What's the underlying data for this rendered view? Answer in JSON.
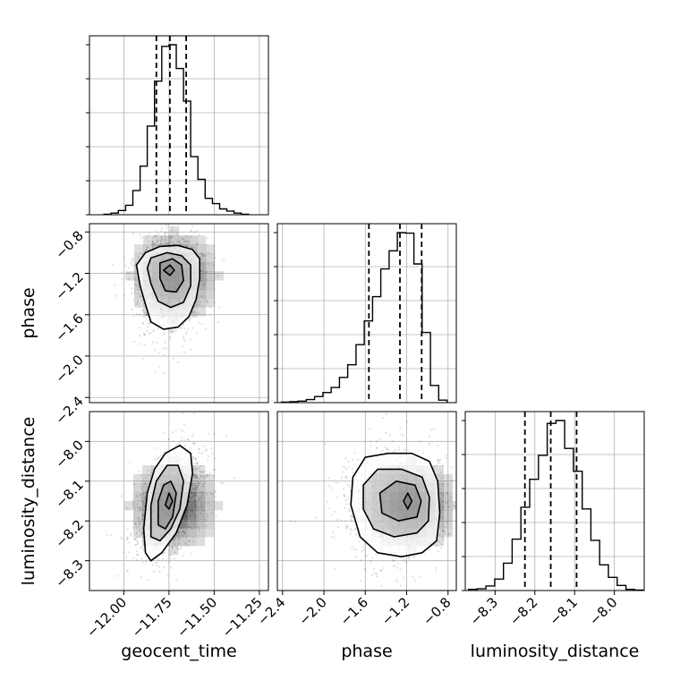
{
  "chart_data": {
    "type": "corner",
    "parameters": [
      "geocent_time",
      "phase",
      "luminosity_distance"
    ],
    "ranges": {
      "geocent_time": [
        -12.19,
        -11.2
      ],
      "phase": [
        -2.45,
        -0.72
      ],
      "luminosity_distance": [
        -8.375,
        -7.925
      ]
    },
    "grid": true,
    "histograms": [
      {
        "parameter": "geocent_time",
        "quantiles": [
          -11.82,
          -11.745,
          -11.655
        ],
        "bins": [
          {
            "x": -12.09,
            "count": 1
          },
          {
            "x": -12.05,
            "count": 3
          },
          {
            "x": -12.01,
            "count": 8
          },
          {
            "x": -11.97,
            "count": 18
          },
          {
            "x": -11.93,
            "count": 46
          },
          {
            "x": -11.89,
            "count": 92
          },
          {
            "x": -11.85,
            "count": 168
          },
          {
            "x": -11.81,
            "count": 253
          },
          {
            "x": -11.77,
            "count": 319
          },
          {
            "x": -11.73,
            "count": 322
          },
          {
            "x": -11.69,
            "count": 277
          },
          {
            "x": -11.65,
            "count": 215
          },
          {
            "x": -11.61,
            "count": 110
          },
          {
            "x": -11.57,
            "count": 67
          },
          {
            "x": -11.53,
            "count": 31
          },
          {
            "x": -11.49,
            "count": 21
          },
          {
            "x": -11.45,
            "count": 11
          },
          {
            "x": -11.41,
            "count": 7
          },
          {
            "x": -11.37,
            "count": 3
          },
          {
            "x": -11.33,
            "count": 1
          }
        ]
      },
      {
        "parameter": "phase",
        "quantiles": [
          -1.565,
          -1.265,
          -1.055
        ],
        "bins": [
          {
            "x": -2.37,
            "count": 1
          },
          {
            "x": -2.29,
            "count": 2
          },
          {
            "x": -2.21,
            "count": 3
          },
          {
            "x": -2.13,
            "count": 6
          },
          {
            "x": -2.05,
            "count": 12
          },
          {
            "x": -1.97,
            "count": 20
          },
          {
            "x": -1.89,
            "count": 30
          },
          {
            "x": -1.81,
            "count": 50
          },
          {
            "x": -1.73,
            "count": 75
          },
          {
            "x": -1.65,
            "count": 115
          },
          {
            "x": -1.57,
            "count": 162
          },
          {
            "x": -1.49,
            "count": 210
          },
          {
            "x": -1.41,
            "count": 265
          },
          {
            "x": -1.33,
            "count": 301
          },
          {
            "x": -1.25,
            "count": 337
          },
          {
            "x": -1.17,
            "count": 336
          },
          {
            "x": -1.09,
            "count": 275
          },
          {
            "x": -1.01,
            "count": 139
          },
          {
            "x": -0.93,
            "count": 34
          },
          {
            "x": -0.85,
            "count": 5
          }
        ]
      },
      {
        "parameter": "luminosity_distance",
        "quantiles": [
          -8.225,
          -8.16,
          -8.095
        ],
        "bins": [
          {
            "x": -8.356,
            "count": 2
          },
          {
            "x": -8.334,
            "count": 3
          },
          {
            "x": -8.312,
            "count": 8
          },
          {
            "x": -8.29,
            "count": 20
          },
          {
            "x": -8.268,
            "count": 48
          },
          {
            "x": -8.246,
            "count": 90
          },
          {
            "x": -8.224,
            "count": 146
          },
          {
            "x": -8.202,
            "count": 195
          },
          {
            "x": -8.18,
            "count": 237
          },
          {
            "x": -8.158,
            "count": 293
          },
          {
            "x": -8.136,
            "count": 298
          },
          {
            "x": -8.114,
            "count": 249
          },
          {
            "x": -8.092,
            "count": 209
          },
          {
            "x": -8.07,
            "count": 143
          },
          {
            "x": -8.048,
            "count": 88
          },
          {
            "x": -8.026,
            "count": 45
          },
          {
            "x": -8.004,
            "count": 23
          },
          {
            "x": -7.982,
            "count": 9
          },
          {
            "x": -7.96,
            "count": 2
          },
          {
            "x": -7.938,
            "count": 1
          }
        ]
      }
    ],
    "panels2d": [
      {
        "x": "geocent_time",
        "y": "phase",
        "mean": [
          -11.745,
          -1.3
        ],
        "sd": [
          0.085,
          0.22
        ],
        "rho": 0.05,
        "peak": [
          -11.745,
          -1.18
        ],
        "contours": [
          [
            [
              -11.88,
              -1.0
            ],
            [
              -11.8,
              -0.94
            ],
            [
              -11.7,
              -0.93
            ],
            [
              -11.62,
              -0.97
            ],
            [
              -11.58,
              -1.06
            ],
            [
              -11.58,
              -1.25
            ],
            [
              -11.6,
              -1.45
            ],
            [
              -11.64,
              -1.62
            ],
            [
              -11.7,
              -1.72
            ],
            [
              -11.78,
              -1.74
            ],
            [
              -11.85,
              -1.67
            ],
            [
              -11.88,
              -1.5
            ],
            [
              -11.91,
              -1.32
            ],
            [
              -11.93,
              -1.12
            ]
          ],
          [
            [
              -11.85,
              -1.05
            ],
            [
              -11.76,
              -1.0
            ],
            [
              -11.68,
              -1.03
            ],
            [
              -11.63,
              -1.12
            ],
            [
              -11.63,
              -1.32
            ],
            [
              -11.67,
              -1.48
            ],
            [
              -11.74,
              -1.53
            ],
            [
              -11.81,
              -1.47
            ],
            [
              -11.85,
              -1.3
            ],
            [
              -11.87,
              -1.15
            ]
          ],
          [
            [
              -11.8,
              -1.1
            ],
            [
              -11.73,
              -1.06
            ],
            [
              -11.68,
              -1.12
            ],
            [
              -11.67,
              -1.27
            ],
            [
              -11.71,
              -1.38
            ],
            [
              -11.77,
              -1.37
            ],
            [
              -11.8,
              -1.25
            ]
          ],
          [
            [
              -11.78,
              -1.17
            ],
            [
              -11.745,
              -1.12
            ],
            [
              -11.72,
              -1.17
            ],
            [
              -11.745,
              -1.22
            ]
          ]
        ]
      },
      {
        "x": "geocent_time",
        "y": "luminosity_distance",
        "mean": [
          -11.745,
          -8.16
        ],
        "sd": [
          0.085,
          0.06
        ],
        "rho": 0.45,
        "peak": [
          -11.75,
          -8.15
        ],
        "contours": [
          [
            [
              -11.88,
              -8.28
            ],
            [
              -11.89,
              -8.22
            ],
            [
              -11.87,
              -8.13
            ],
            [
              -11.83,
              -8.07
            ],
            [
              -11.77,
              -8.03
            ],
            [
              -11.69,
              -8.01
            ],
            [
              -11.63,
              -8.03
            ],
            [
              -11.62,
              -8.08
            ],
            [
              -11.65,
              -8.16
            ],
            [
              -11.71,
              -8.23
            ],
            [
              -11.79,
              -8.28
            ],
            [
              -11.85,
              -8.3
            ]
          ],
          [
            [
              -11.85,
              -8.24
            ],
            [
              -11.85,
              -8.16
            ],
            [
              -11.82,
              -8.1
            ],
            [
              -11.76,
              -8.06
            ],
            [
              -11.7,
              -8.06
            ],
            [
              -11.67,
              -8.1
            ],
            [
              -11.69,
              -8.17
            ],
            [
              -11.74,
              -8.22
            ],
            [
              -11.8,
              -8.25
            ]
          ],
          [
            [
              -11.81,
              -8.21
            ],
            [
              -11.81,
              -8.15
            ],
            [
              -11.78,
              -8.11
            ],
            [
              -11.74,
              -8.1
            ],
            [
              -11.71,
              -8.13
            ],
            [
              -11.73,
              -8.19
            ],
            [
              -11.77,
              -8.22
            ]
          ],
          [
            [
              -11.77,
              -8.16
            ],
            [
              -11.75,
              -8.13
            ],
            [
              -11.73,
              -8.15
            ],
            [
              -11.75,
              -8.17
            ]
          ]
        ]
      },
      {
        "x": "phase",
        "y": "luminosity_distance",
        "mean": [
          -1.3,
          -8.16
        ],
        "sd": [
          0.22,
          0.06
        ],
        "rho": 0.0,
        "peak": [
          -1.19,
          -8.15
        ],
        "contours": [
          [
            [
              -1.72,
              -8.09
            ],
            [
              -1.6,
              -8.04
            ],
            [
              -1.38,
              -8.03
            ],
            [
              -1.15,
              -8.03
            ],
            [
              -0.98,
              -8.05
            ],
            [
              -0.9,
              -8.1
            ],
            [
              -0.88,
              -8.18
            ],
            [
              -0.91,
              -8.25
            ],
            [
              -1.05,
              -8.28
            ],
            [
              -1.25,
              -8.29
            ],
            [
              -1.48,
              -8.28
            ],
            [
              -1.65,
              -8.24
            ],
            [
              -1.74,
              -8.16
            ]
          ],
          [
            [
              -1.62,
              -8.11
            ],
            [
              -1.48,
              -8.07
            ],
            [
              -1.25,
              -8.07
            ],
            [
              -1.05,
              -8.09
            ],
            [
              -0.98,
              -8.14
            ],
            [
              -0.99,
              -8.2
            ],
            [
              -1.1,
              -8.23
            ],
            [
              -1.32,
              -8.24
            ],
            [
              -1.52,
              -8.22
            ],
            [
              -1.62,
              -8.17
            ]
          ],
          [
            [
              -1.46,
              -8.13
            ],
            [
              -1.3,
              -8.1
            ],
            [
              -1.12,
              -8.11
            ],
            [
              -1.06,
              -8.15
            ],
            [
              -1.1,
              -8.19
            ],
            [
              -1.28,
              -8.2
            ],
            [
              -1.44,
              -8.18
            ]
          ],
          [
            [
              -1.23,
              -8.15
            ],
            [
              -1.19,
              -8.13
            ],
            [
              -1.15,
              -8.15
            ],
            [
              -1.19,
              -8.17
            ]
          ]
        ]
      }
    ],
    "ticks": {
      "geocent_time": [
        "-12.00",
        "-11.75",
        "-11.50",
        "-11.25"
      ],
      "phase_x": [
        "-2.4",
        "-2.0",
        "-1.6",
        "-1.2",
        "-0.8"
      ],
      "phase_y": [
        "-0.8",
        "-1.2",
        "-1.6",
        "-2.0",
        "-2.4"
      ],
      "luminosity_distance_x": [
        "-8.3",
        "-8.2",
        "-8.1",
        "-8.0"
      ],
      "luminosity_distance_y": [
        "-8.0",
        "-8.1",
        "-8.2",
        "-8.3"
      ]
    },
    "xlabels": [
      "geocent_time",
      "phase",
      "luminosity_distance"
    ],
    "ylabels": [
      "phase",
      "luminosity_distance"
    ]
  }
}
